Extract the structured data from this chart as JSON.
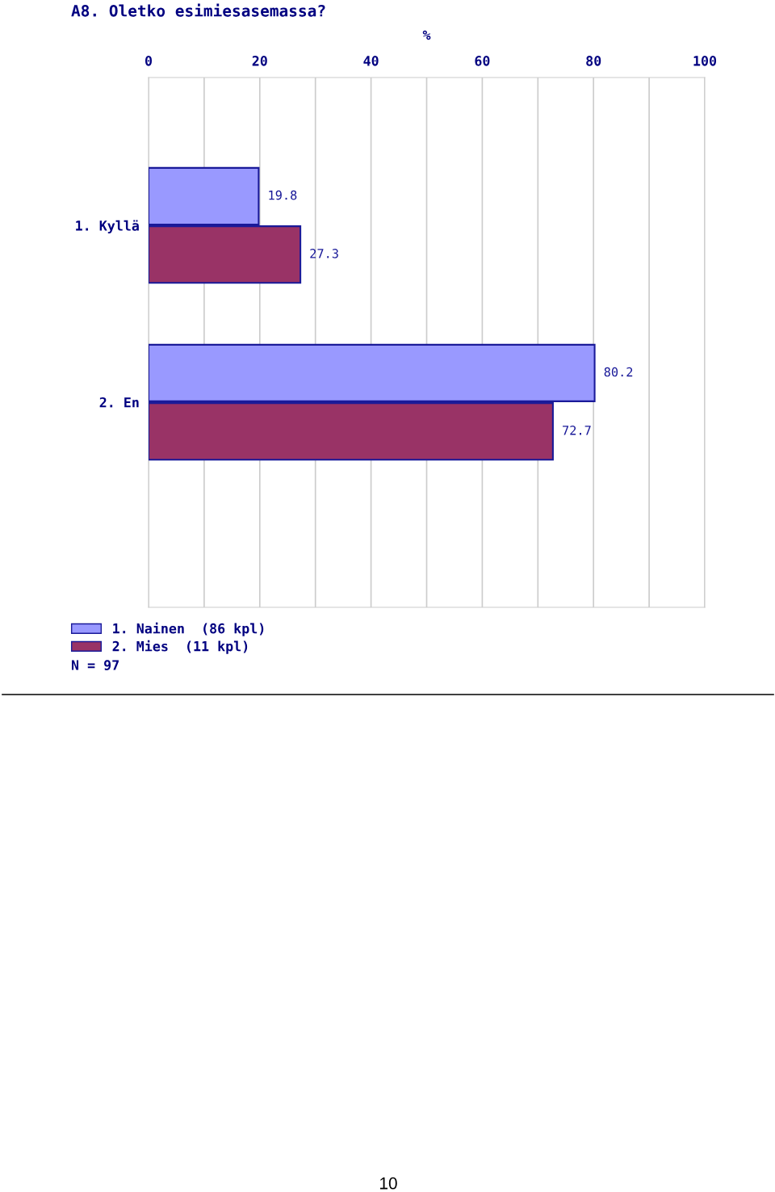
{
  "chart_data": {
    "type": "bar",
    "orientation": "horizontal",
    "title": "A8. Oletko esimiesasemassa?",
    "xlabel": "%",
    "categories": [
      "1. Kyllä",
      "2. En"
    ],
    "series": [
      {
        "name": "1. Nainen  (86 kpl)",
        "color": "#9999ff",
        "values": [
          19.8,
          80.2
        ]
      },
      {
        "name": "2. Mies  (11 kpl)",
        "color": "#993366",
        "values": [
          27.3,
          72.7
        ]
      }
    ],
    "xlim": [
      0,
      100
    ],
    "xticks": [
      0,
      {
        "value": 10,
        "label": null
      },
      20,
      {
        "value": 30,
        "label": null
      },
      40,
      {
        "value": 50,
        "label": null
      },
      60,
      {
        "value": 70,
        "label": null
      },
      80,
      {
        "value": 90,
        "label": null
      },
      100
    ],
    "grid": "x",
    "legend": "bottom left",
    "data_labels": true,
    "annotations": [
      "N = 97",
      "10"
    ]
  }
}
